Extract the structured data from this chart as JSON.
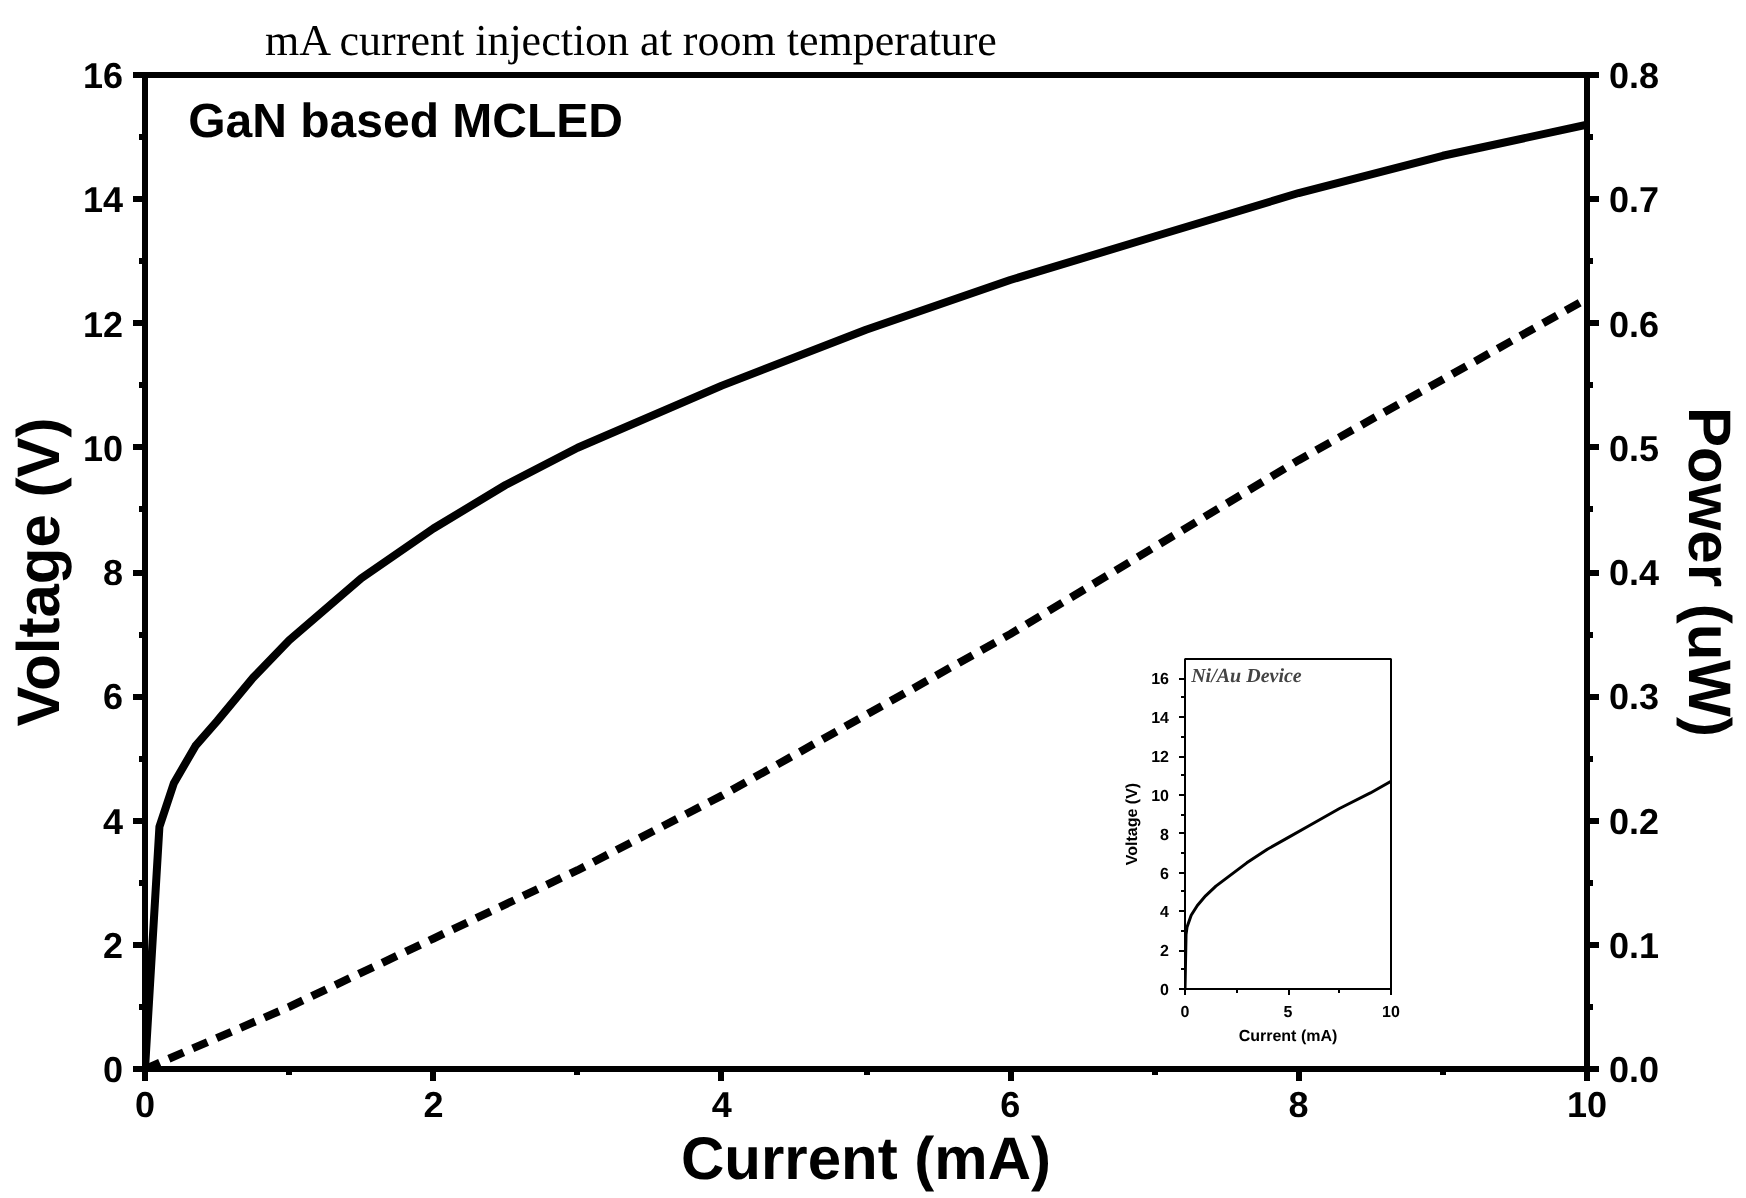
{
  "chart_data": [
    {
      "type": "line",
      "title": "GaN based MCLED",
      "xlabel": "Current (mA)",
      "ylabel": "Voltage (V)",
      "y2label": "Power (uW)",
      "annotations": [
        "mA current injection at room temperature"
      ],
      "xlim": [
        0,
        10
      ],
      "xticks": [
        0,
        2,
        4,
        6,
        8,
        10
      ],
      "ylim": [
        0,
        16
      ],
      "yticks": [
        0,
        2,
        4,
        6,
        8,
        10,
        12,
        14,
        16
      ],
      "y2lim": [
        0,
        0.8
      ],
      "y2ticks": [
        {
          "value": 0,
          "label": "0.0"
        },
        0.1,
        0.2,
        0.3,
        0.4,
        0.5,
        0.6,
        0.7,
        0.8
      ],
      "grid": false,
      "series": [
        {
          "color": "#000000",
          "line_style": "solid",
          "x": [
            0,
            0.1,
            0.2,
            0.35,
            0.5,
            0.75,
            1,
            1.5,
            2,
            2.5,
            3,
            4,
            5,
            6,
            7,
            8,
            9,
            10
          ],
          "values": [
            0,
            3.9,
            4.6,
            5.2,
            5.6,
            6.3,
            6.9,
            7.9,
            8.7,
            9.4,
            10.0,
            11.0,
            11.9,
            12.7,
            13.4,
            14.1,
            14.7,
            15.2
          ]
        },
        {
          "color": "#000000",
          "line_style": "dashed",
          "axis": "y2",
          "x": [
            0,
            1,
            2,
            3,
            4,
            5,
            6,
            7,
            8,
            9,
            10
          ],
          "values": [
            0,
            0.05,
            0.105,
            0.16,
            0.22,
            0.285,
            0.35,
            0.42,
            0.49,
            0.555,
            0.62
          ]
        }
      ]
    },
    {
      "type": "line",
      "title": "Ni/Au Device",
      "xlabel": "Current (mA)",
      "ylabel": "Voltage (V)",
      "xlim": [
        0,
        10
      ],
      "xticks": [
        0,
        5,
        10
      ],
      "ylim": [
        0,
        17
      ],
      "yticks": [
        0,
        2,
        4,
        6,
        8,
        10,
        12,
        14,
        16
      ],
      "grid": false,
      "series": [
        {
          "color": "#000000",
          "line_style": "solid",
          "x": [
            0,
            0.05,
            0.1,
            0.3,
            0.6,
            1,
            1.5,
            2,
            3,
            4,
            5,
            6,
            7.5,
            9,
            10
          ],
          "values": [
            0,
            2.8,
            3.2,
            3.8,
            4.3,
            4.8,
            5.3,
            5.7,
            6.5,
            7.2,
            7.8,
            8.4,
            9.3,
            10.1,
            10.7
          ]
        }
      ]
    }
  ]
}
